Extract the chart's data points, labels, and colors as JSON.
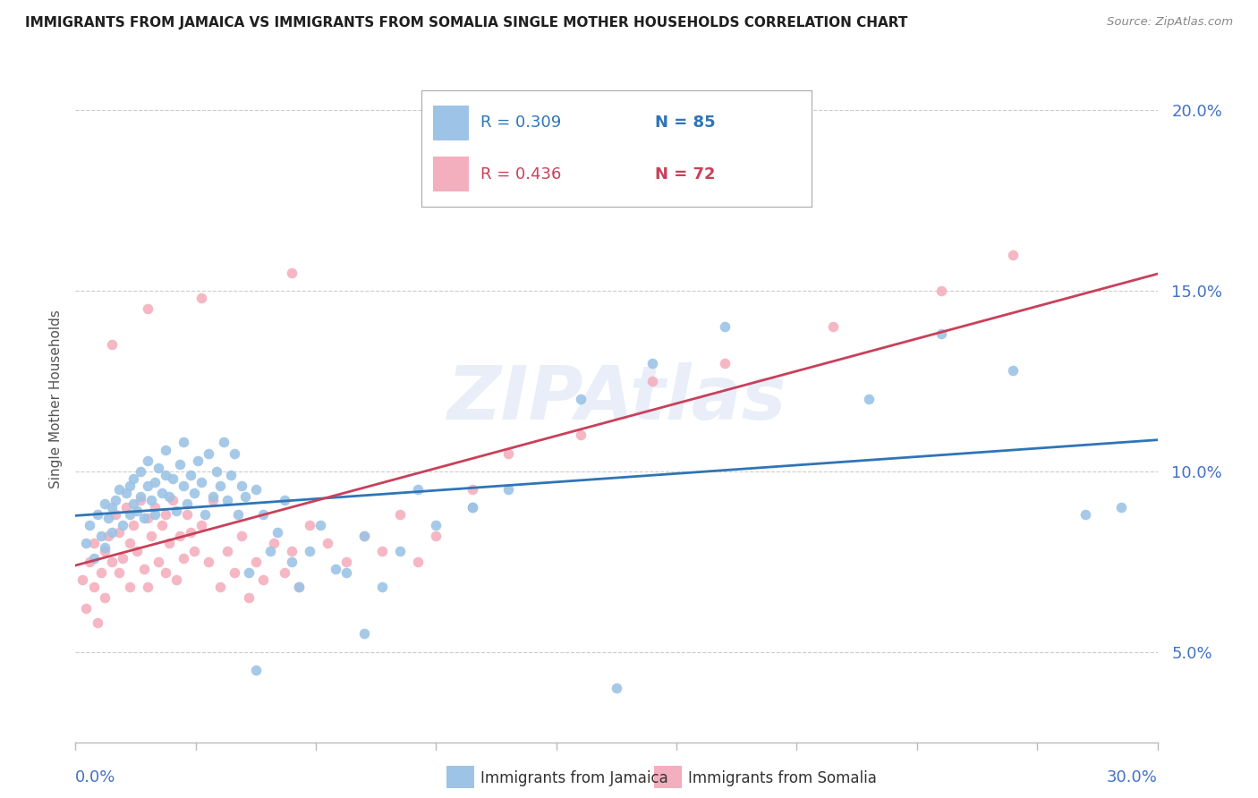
{
  "title": "IMMIGRANTS FROM JAMAICA VS IMMIGRANTS FROM SOMALIA SINGLE MOTHER HOUSEHOLDS CORRELATION CHART",
  "source": "Source: ZipAtlas.com",
  "ylabel": "Single Mother Households",
  "y_ticks": [
    0.05,
    0.1,
    0.15,
    0.2
  ],
  "y_tick_labels": [
    "5.0%",
    "10.0%",
    "15.0%",
    "20.0%"
  ],
  "x_range": [
    0.0,
    0.3
  ],
  "y_range": [
    0.025,
    0.215
  ],
  "jamaica_R": "0.309",
  "jamaica_N": "85",
  "somalia_R": "0.436",
  "somalia_N": "72",
  "jamaica_color": "#9DC3E6",
  "somalia_color": "#F4AFBE",
  "jamaica_line_color": "#2F75B6",
  "somalia_line_color": "#C9405A",
  "legend_jamaica_label": "Immigrants from Jamaica",
  "legend_somalia_label": "Immigrants from Somalia",
  "watermark": "ZIPAtlas",
  "background_color": "#FFFFFF",
  "grid_color": "#CCCCCC",
  "axis_label_color": "#4472C4",
  "title_color": "#1F1F1F",
  "jamaica_scatter_x": [
    0.003,
    0.004,
    0.005,
    0.006,
    0.007,
    0.008,
    0.008,
    0.009,
    0.01,
    0.01,
    0.011,
    0.012,
    0.013,
    0.014,
    0.015,
    0.015,
    0.016,
    0.016,
    0.017,
    0.018,
    0.018,
    0.019,
    0.02,
    0.02,
    0.021,
    0.022,
    0.022,
    0.023,
    0.024,
    0.025,
    0.025,
    0.026,
    0.027,
    0.028,
    0.029,
    0.03,
    0.03,
    0.031,
    0.032,
    0.033,
    0.034,
    0.035,
    0.036,
    0.037,
    0.038,
    0.039,
    0.04,
    0.041,
    0.042,
    0.043,
    0.044,
    0.045,
    0.046,
    0.047,
    0.048,
    0.05,
    0.052,
    0.054,
    0.056,
    0.058,
    0.06,
    0.062,
    0.065,
    0.068,
    0.072,
    0.075,
    0.08,
    0.085,
    0.09,
    0.095,
    0.1,
    0.11,
    0.12,
    0.14,
    0.16,
    0.18,
    0.22,
    0.24,
    0.26,
    0.28,
    0.29,
    0.05,
    0.08,
    0.11,
    0.15
  ],
  "jamaica_scatter_y": [
    0.08,
    0.085,
    0.076,
    0.088,
    0.082,
    0.079,
    0.091,
    0.087,
    0.09,
    0.083,
    0.092,
    0.095,
    0.085,
    0.094,
    0.088,
    0.096,
    0.091,
    0.098,
    0.089,
    0.093,
    0.1,
    0.087,
    0.096,
    0.103,
    0.092,
    0.097,
    0.088,
    0.101,
    0.094,
    0.099,
    0.106,
    0.093,
    0.098,
    0.089,
    0.102,
    0.096,
    0.108,
    0.091,
    0.099,
    0.094,
    0.103,
    0.097,
    0.088,
    0.105,
    0.093,
    0.1,
    0.096,
    0.108,
    0.092,
    0.099,
    0.105,
    0.088,
    0.096,
    0.093,
    0.072,
    0.095,
    0.088,
    0.078,
    0.083,
    0.092,
    0.075,
    0.068,
    0.078,
    0.085,
    0.073,
    0.072,
    0.082,
    0.068,
    0.078,
    0.095,
    0.085,
    0.09,
    0.095,
    0.12,
    0.13,
    0.14,
    0.12,
    0.138,
    0.128,
    0.088,
    0.09,
    0.045,
    0.055,
    0.09,
    0.04
  ],
  "somalia_scatter_x": [
    0.002,
    0.003,
    0.004,
    0.005,
    0.005,
    0.006,
    0.007,
    0.008,
    0.008,
    0.009,
    0.01,
    0.011,
    0.012,
    0.012,
    0.013,
    0.014,
    0.015,
    0.015,
    0.016,
    0.017,
    0.018,
    0.019,
    0.02,
    0.02,
    0.021,
    0.022,
    0.023,
    0.024,
    0.025,
    0.025,
    0.026,
    0.027,
    0.028,
    0.029,
    0.03,
    0.031,
    0.032,
    0.033,
    0.035,
    0.037,
    0.038,
    0.04,
    0.042,
    0.044,
    0.046,
    0.048,
    0.05,
    0.052,
    0.055,
    0.058,
    0.06,
    0.062,
    0.065,
    0.07,
    0.075,
    0.08,
    0.085,
    0.09,
    0.095,
    0.1,
    0.11,
    0.12,
    0.14,
    0.16,
    0.18,
    0.21,
    0.24,
    0.26,
    0.01,
    0.02,
    0.035,
    0.06
  ],
  "somalia_scatter_y": [
    0.07,
    0.062,
    0.075,
    0.068,
    0.08,
    0.058,
    0.072,
    0.078,
    0.065,
    0.082,
    0.075,
    0.088,
    0.072,
    0.083,
    0.076,
    0.09,
    0.08,
    0.068,
    0.085,
    0.078,
    0.092,
    0.073,
    0.087,
    0.068,
    0.082,
    0.09,
    0.075,
    0.085,
    0.072,
    0.088,
    0.08,
    0.092,
    0.07,
    0.082,
    0.076,
    0.088,
    0.083,
    0.078,
    0.085,
    0.075,
    0.092,
    0.068,
    0.078,
    0.072,
    0.082,
    0.065,
    0.075,
    0.07,
    0.08,
    0.072,
    0.078,
    0.068,
    0.085,
    0.08,
    0.075,
    0.082,
    0.078,
    0.088,
    0.075,
    0.082,
    0.095,
    0.105,
    0.11,
    0.125,
    0.13,
    0.14,
    0.15,
    0.16,
    0.135,
    0.145,
    0.148,
    0.155
  ]
}
